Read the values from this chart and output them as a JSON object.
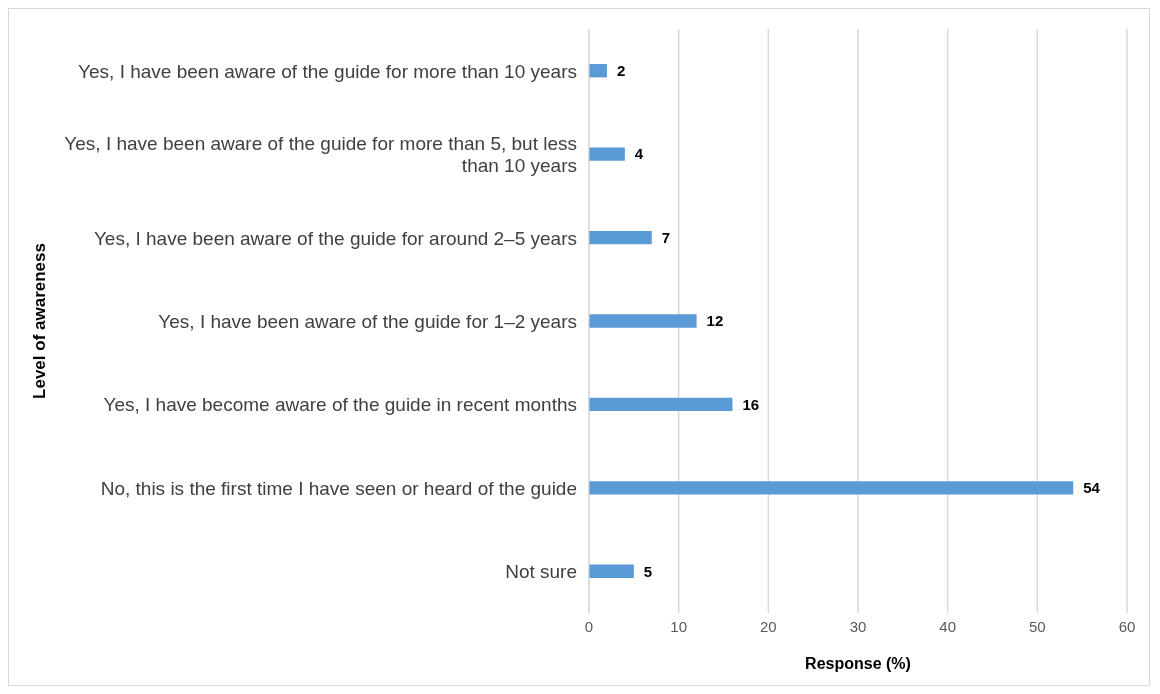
{
  "chart_data": {
    "type": "bar",
    "orientation": "horizontal",
    "xlabel": "Response (%)",
    "ylabel": "Level of awareness",
    "categories": [
      "Yes, I have been aware of the guide for more than 10 years",
      "Yes, I have been aware of the guide for more than 5, but less than 10 years",
      "Yes, I have been aware of the guide for around 2–5 years",
      "Yes, I have been aware of the guide for 1–2 years",
      "Yes, I  have become aware of the guide in recent months",
      "No, this is the first time I have seen or heard of the guide",
      "Not sure"
    ],
    "values": [
      2,
      4,
      7,
      12,
      16,
      54,
      5
    ],
    "color": "#5b9bd5",
    "data_labels": true,
    "xlim": [
      0,
      60
    ],
    "xticks": [
      0,
      10,
      20,
      30,
      40,
      50,
      60
    ],
    "grid": "x"
  }
}
